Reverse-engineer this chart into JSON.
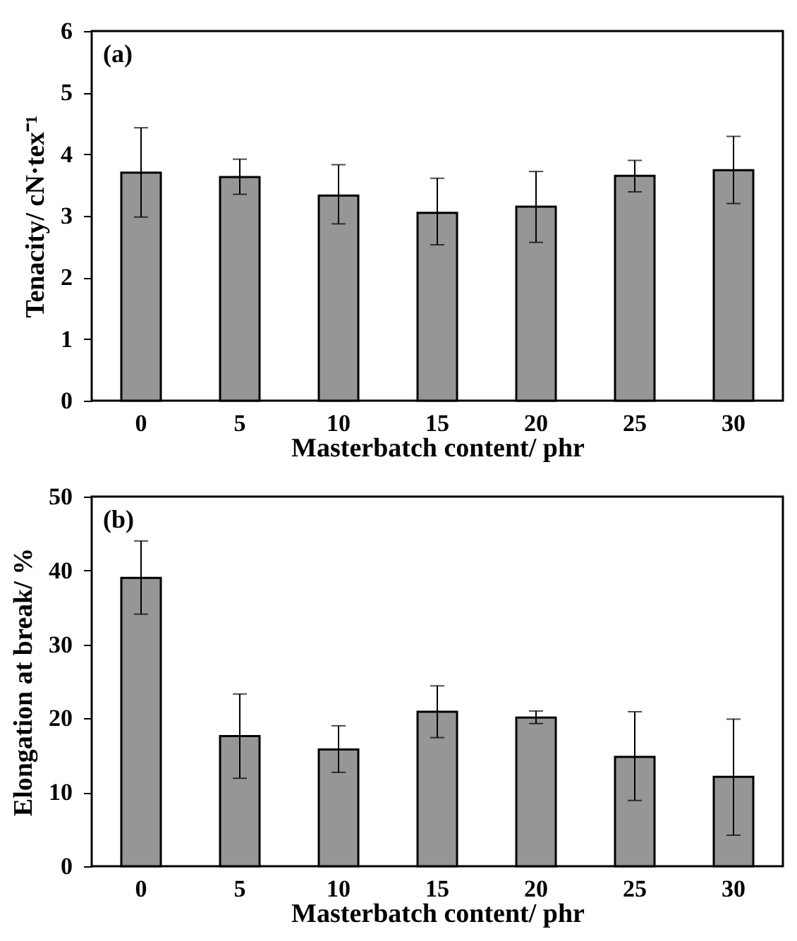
{
  "chart_data": [
    {
      "type": "bar",
      "xlabel": "Masterbatch content/ phr",
      "ylabel": "Tenacity/ cN·tex⁻¹",
      "annotations": [
        "(a)"
      ],
      "categories": [
        "0",
        "5",
        "10",
        "15",
        "20",
        "25",
        "30"
      ],
      "values": [
        3.7,
        3.63,
        3.33,
        3.05,
        3.15,
        3.65,
        3.74
      ],
      "errors": [
        [
          2.98,
          4.43
        ],
        [
          3.35,
          3.92
        ],
        [
          2.87,
          3.83
        ],
        [
          2.53,
          3.61
        ],
        [
          2.57,
          3.72
        ],
        [
          3.39,
          3.9
        ],
        [
          3.2,
          4.29
        ]
      ],
      "color": "#969696",
      "ylim": [
        0,
        6
      ],
      "yticks": [
        0,
        1,
        2,
        3,
        4,
        5,
        6
      ],
      "grid": false
    },
    {
      "type": "bar",
      "xlabel": "Masterbatch content/ phr",
      "ylabel": "Elongation at break/ %",
      "annotations": [
        "(b)"
      ],
      "categories": [
        "0",
        "5",
        "10",
        "15",
        "20",
        "25",
        "30"
      ],
      "values": [
        39,
        17.6,
        15.8,
        20.9,
        20.1,
        14.8,
        12.1
      ],
      "errors": [
        [
          34.1,
          44
        ],
        [
          11.9,
          23.3
        ],
        [
          12.7,
          19
        ],
        [
          17.4,
          24.4
        ],
        [
          19.3,
          21
        ],
        [
          8.9,
          20.9
        ],
        [
          4.2,
          19.9
        ]
      ],
      "color": "#969696",
      "ylim": [
        0,
        50
      ],
      "yticks": [
        0,
        10,
        20,
        30,
        40,
        50
      ],
      "grid": false
    }
  ]
}
